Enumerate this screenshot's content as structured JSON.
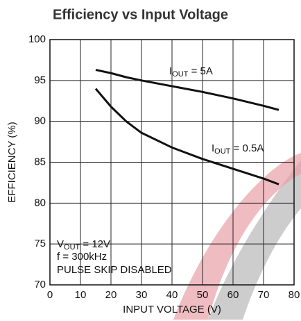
{
  "chart_data": {
    "type": "line",
    "title": "Efficiency vs Input Voltage",
    "x_label": "INPUT VOLTAGE (V)",
    "y_label": "EFFICIENCY (%)",
    "x": [
      15,
      20,
      25,
      30,
      40,
      50,
      60,
      70,
      75
    ],
    "series": [
      {
        "color": "#111111",
        "values": [
          96.3,
          95.9,
          95.4,
          95.0,
          94.3,
          93.6,
          92.8,
          91.9,
          91.4
        ]
      },
      {
        "color": "#111111",
        "values": [
          94.0,
          91.8,
          90.0,
          88.6,
          86.8,
          85.4,
          84.2,
          83.0,
          82.3
        ]
      }
    ],
    "xlim": [
      0,
      80
    ],
    "xticks": [
      0,
      10,
      20,
      30,
      40,
      50,
      60,
      70,
      80
    ],
    "ylim": [
      70,
      100
    ],
    "yticks": [
      70,
      75,
      80,
      85,
      90,
      95,
      100
    ],
    "grid": true,
    "annotations": [
      {
        "parts": [
          "I",
          "OUT",
          " = 5A"
        ]
      },
      {
        "parts": [
          "I",
          "OUT",
          " = 0.5A"
        ]
      },
      {
        "parts": [
          "V",
          "OUT",
          " = 12V"
        ]
      },
      {
        "parts": [
          "f = 300kHz"
        ]
      },
      {
        "parts": [
          "PULSE SKIP DISABLED"
        ]
      }
    ]
  }
}
